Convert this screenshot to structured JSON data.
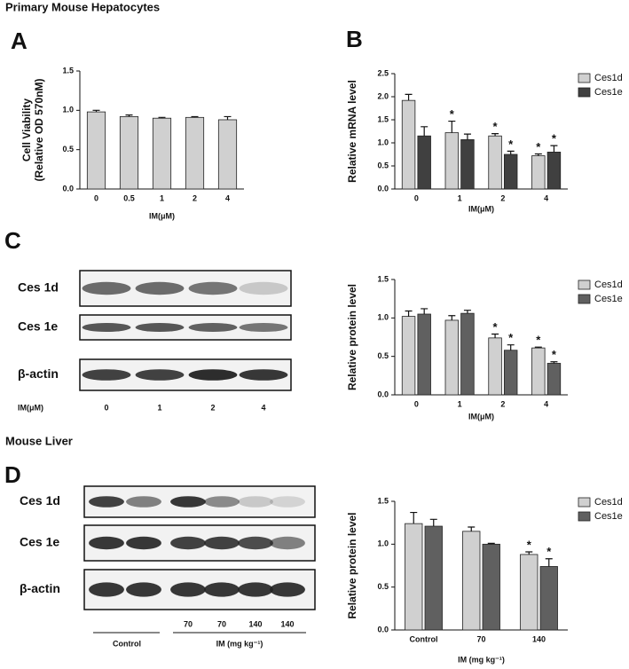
{
  "figure": {
    "section_1": "Primary Mouse Hepatocytes",
    "section_2": "Mouse Liver",
    "panels": [
      "A",
      "B",
      "C",
      "D"
    ]
  },
  "blots": [
    {
      "rows": [
        "Ces 1d",
        "Ces 1e",
        "β-actin"
      ],
      "x_title": "IM(μM)",
      "lane_labels": [
        "0",
        "1",
        "2",
        "4"
      ]
    },
    {
      "rows": [
        "Ces 1d",
        "Ces 1e",
        "β-actin"
      ],
      "lane_labels": [
        null,
        null,
        "70",
        "70",
        "140",
        "140"
      ],
      "groups": [
        "Control",
        "IM (mg kg⁻¹)"
      ]
    }
  ],
  "chart_data": [
    {
      "type": "bar",
      "ylabel": [
        "Cell Viability",
        "(Relative OD 570nM)"
      ],
      "xlabel": "IM(μM)",
      "categories": [
        "0",
        "0.5",
        "1",
        "2",
        "4"
      ],
      "values": [
        0.98,
        0.92,
        0.9,
        0.91,
        0.88
      ],
      "errors": [
        0.02,
        0.02,
        0.01,
        0.01,
        0.04
      ],
      "color": "#d0d0d0",
      "ylim": [
        0,
        1.5
      ],
      "yticks": [
        {
          "value": 0,
          "label": "0.0"
        },
        0.5,
        {
          "value": 1,
          "label": "1.0"
        },
        1.5
      ]
    },
    {
      "type": "bar",
      "ylabel": [
        "Relative  mRNA level"
      ],
      "xlabel": "IM(μM)",
      "categories": [
        "0",
        "1",
        "2",
        "4"
      ],
      "series": [
        {
          "name": "Ces1d",
          "color": "#d0d0d0",
          "values": [
            1.92,
            1.22,
            1.15,
            0.72
          ],
          "errors": [
            0.13,
            0.25,
            0.05,
            0.04
          ],
          "annotations": [
            null,
            "*",
            "*",
            "*"
          ]
        },
        {
          "name": "Ces1e",
          "color": "#404040",
          "values": [
            1.15,
            1.07,
            0.75,
            0.8
          ],
          "errors": [
            0.2,
            0.12,
            0.07,
            0.14
          ],
          "annotations": [
            null,
            null,
            "*",
            "*"
          ]
        }
      ],
      "ylim": [
        0,
        2.5
      ],
      "yticks": [
        {
          "value": 0,
          "label": "0.0"
        },
        0.5,
        {
          "value": 1,
          "label": "1.0"
        },
        1.5,
        {
          "value": 2,
          "label": "2.0"
        },
        2.5
      ],
      "legend": "right"
    },
    {
      "type": "bar",
      "ylabel": [
        "Relative  protein level"
      ],
      "xlabel": "IM(μM)",
      "categories": [
        "0",
        "1",
        "2",
        "4"
      ],
      "series": [
        {
          "name": "Ces1d",
          "color": "#d0d0d0",
          "values": [
            1.02,
            0.97,
            0.74,
            0.61
          ],
          "errors": [
            0.07,
            0.06,
            0.05,
            0.01
          ],
          "annotations": [
            null,
            null,
            "*",
            "*"
          ]
        },
        {
          "name": "Ces1e",
          "color": "#606060",
          "values": [
            1.05,
            1.06,
            0.58,
            0.41
          ],
          "errors": [
            0.07,
            0.04,
            0.07,
            0.02
          ],
          "annotations": [
            null,
            null,
            "*",
            "*"
          ]
        }
      ],
      "ylim": [
        0,
        1.5
      ],
      "yticks": [
        {
          "value": 0,
          "label": "0.0"
        },
        0.5,
        {
          "value": 1,
          "label": "1.0"
        },
        1.5
      ],
      "legend": "right"
    },
    {
      "type": "bar",
      "ylabel": [
        "Relative  protein level"
      ],
      "xlabel": "IM (mg kg⁻¹)",
      "categories": [
        "Control",
        "70",
        "140"
      ],
      "series": [
        {
          "name": "Ces1d",
          "color": "#d0d0d0",
          "values": [
            1.24,
            1.15,
            0.88
          ],
          "errors": [
            0.13,
            0.05,
            0.03
          ],
          "annotations": [
            null,
            null,
            "*"
          ]
        },
        {
          "name": "Ces1e",
          "color": "#606060",
          "values": [
            1.21,
            1.0,
            0.74
          ],
          "errors": [
            0.08,
            0.01,
            0.09
          ],
          "annotations": [
            null,
            null,
            "*"
          ]
        }
      ],
      "ylim": [
        0,
        1.5
      ],
      "yticks": [
        {
          "value": 0,
          "label": "0.0"
        },
        0.5,
        {
          "value": 1,
          "label": "1.0"
        },
        1.5
      ],
      "legend": "right"
    }
  ]
}
